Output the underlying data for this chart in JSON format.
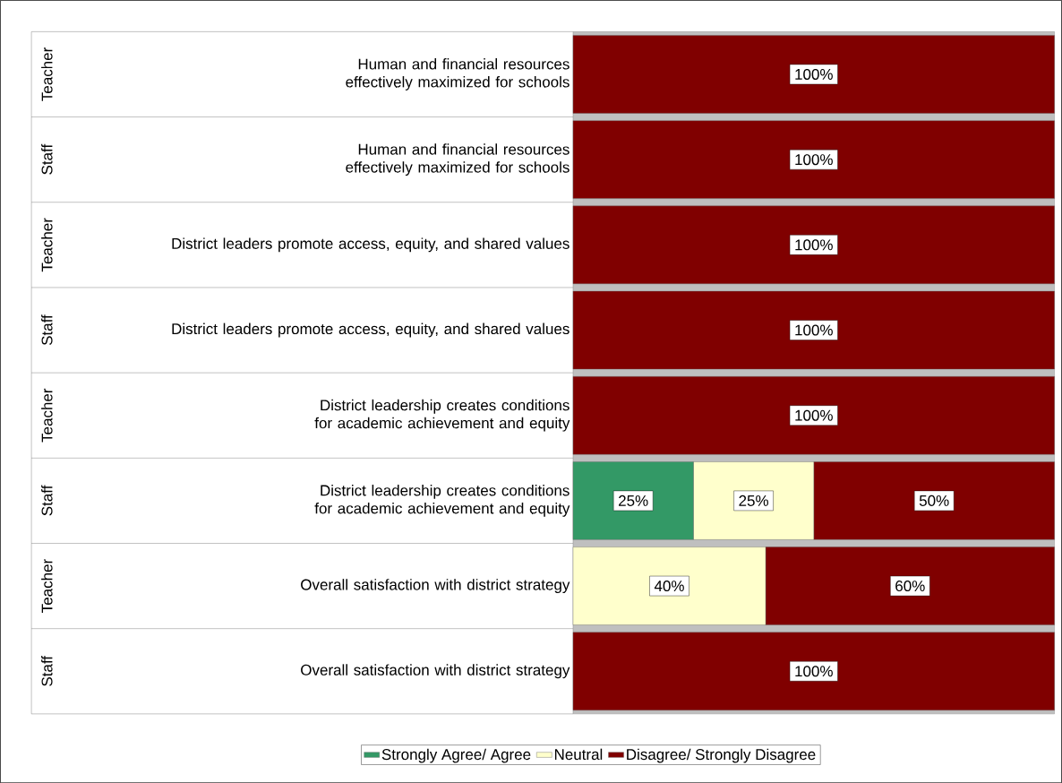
{
  "chart_data": {
    "type": "bar",
    "orientation": "horizontal",
    "stacked": true,
    "categories": [
      "Human and financial resources effectively maximized for schools",
      "Human and financial resources effectively maximized for schools",
      "District leaders promote access, equity, and shared values",
      "District leaders promote access, equity, and shared values",
      "District leadership creates conditions for academic achievement and equity",
      "District leadership creates conditions for academic achievement and equity",
      "Overall satisfaction with district strategy",
      "Overall satisfaction with district strategy"
    ],
    "annotations": [
      "Teacher",
      "Staff",
      "Teacher",
      "Staff",
      "Teacher",
      "Staff",
      "Teacher",
      "Staff"
    ],
    "series": [
      {
        "name": "Strongly Agree/ Agree",
        "color": "#339966",
        "values": [
          0,
          0,
          0,
          0,
          0,
          25,
          0,
          0
        ],
        "value_labels": [
          null,
          null,
          null,
          null,
          null,
          "25%",
          null,
          null
        ]
      },
      {
        "name": "Neutral",
        "color": "#ffffcc",
        "values": [
          0,
          0,
          0,
          0,
          0,
          25,
          40,
          0
        ],
        "value_labels": [
          null,
          null,
          null,
          null,
          null,
          "25%",
          "40%",
          null
        ]
      },
      {
        "name": "Disagree/ Strongly Disagree",
        "color": "#800000",
        "values": [
          100,
          100,
          100,
          100,
          100,
          50,
          60,
          100
        ],
        "value_labels": [
          "100%",
          "100%",
          "100%",
          "100%",
          "100%",
          "50%",
          "60%",
          "100%"
        ]
      }
    ],
    "xlim": [
      0,
      100
    ],
    "tick_labels": "y",
    "legend": "bottom"
  }
}
